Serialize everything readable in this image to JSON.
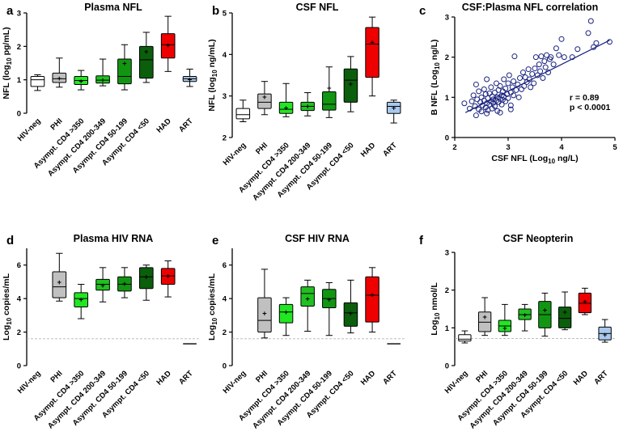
{
  "figure": {
    "panel_labels": [
      "a",
      "b",
      "c",
      "d",
      "e",
      "f"
    ]
  },
  "chart_data": [
    {
      "id": "a",
      "type": "box",
      "title": "Plasma NFL",
      "ylabel_parts": [
        "NFL (log",
        "10",
        " pg/mL)"
      ],
      "ylim": [
        0,
        3
      ],
      "yticks": [
        0,
        1,
        2,
        3
      ],
      "categories": [
        "HIV-neg",
        "PHI",
        "Asympt. CD4 >350",
        "Asympt. CD4 200-349",
        "Asympt. CD4 50-199",
        "Asympt. CD4 <50",
        "HAD",
        "ART"
      ],
      "colors": [
        "#ffffff",
        "#c0c0c0",
        "#22e622",
        "#20c020",
        "#129612",
        "#0b5e0b",
        "#ee0000",
        "#a8c8ee"
      ],
      "boxes": [
        {
          "min": 0.68,
          "q1": 0.8,
          "median": 1.0,
          "q3": 1.1,
          "max": 1.15,
          "mean": null
        },
        {
          "min": 0.78,
          "q1": 0.92,
          "median": 1.03,
          "q3": 1.2,
          "max": 1.65,
          "mean": 1.05
        },
        {
          "min": 0.7,
          "q1": 0.86,
          "median": 0.98,
          "q3": 1.1,
          "max": 1.28,
          "mean": 0.97
        },
        {
          "min": 0.82,
          "q1": 0.9,
          "median": 0.99,
          "q3": 1.12,
          "max": 1.62,
          "mean": 1.0
        },
        {
          "min": 0.7,
          "q1": 0.88,
          "median": 1.1,
          "q3": 1.62,
          "max": 2.05,
          "mean": 1.5
        },
        {
          "min": 0.92,
          "q1": 1.05,
          "median": 1.6,
          "q3": 2.0,
          "max": 2.42,
          "mean": 1.85
        },
        {
          "min": 1.25,
          "q1": 1.65,
          "median": 2.05,
          "q3": 2.38,
          "max": 2.9,
          "mean": 2.05
        },
        {
          "min": 0.8,
          "q1": 0.95,
          "median": 1.03,
          "q3": 1.1,
          "max": 1.32,
          "mean": 1.02
        }
      ]
    },
    {
      "id": "b",
      "type": "box",
      "title": "CSF NFL",
      "ylabel_parts": [
        "NFL (log",
        "10",
        " ng/mL)"
      ],
      "ylim": [
        2,
        5
      ],
      "yticks": [
        2,
        3,
        4,
        5
      ],
      "categories": [
        "HIV-neg",
        "PHI",
        "Asympt. CD4 >350",
        "Asympt. CD4 200-349",
        "Asympt. CD4 50-199",
        "Asympt. CD4 <50",
        "HAD",
        "ART"
      ],
      "colors": [
        "#ffffff",
        "#c0c0c0",
        "#22e622",
        "#20c020",
        "#129612",
        "#0b5e0b",
        "#ee0000",
        "#a8c8ee"
      ],
      "boxes": [
        {
          "min": 2.38,
          "q1": 2.45,
          "median": 2.55,
          "q3": 2.7,
          "max": 2.9,
          "mean": null
        },
        {
          "min": 2.55,
          "q1": 2.7,
          "median": 2.85,
          "q3": 3.05,
          "max": 3.35,
          "mean": 2.98
        },
        {
          "min": 2.5,
          "q1": 2.58,
          "median": 2.68,
          "q3": 2.85,
          "max": 3.3,
          "mean": 2.72
        },
        {
          "min": 2.52,
          "q1": 2.65,
          "median": 2.75,
          "q3": 2.85,
          "max": 3.08,
          "mean": 2.76
        },
        {
          "min": 2.48,
          "q1": 2.66,
          "median": 2.8,
          "q3": 3.1,
          "max": 3.7,
          "mean": 3.2
        },
        {
          "min": 2.62,
          "q1": 2.85,
          "median": 3.38,
          "q3": 3.65,
          "max": 3.95,
          "mean": 3.3
        },
        {
          "min": 3.0,
          "q1": 3.45,
          "median": 4.25,
          "q3": 4.65,
          "max": 4.9,
          "mean": 4.3
        },
        {
          "min": 2.35,
          "q1": 2.58,
          "median": 2.75,
          "q3": 2.85,
          "max": 2.9,
          "mean": 2.72
        }
      ]
    },
    {
      "id": "c",
      "type": "scatter",
      "title": "CSF:Plasma NFL correlation",
      "xlabel_parts": [
        "CSF NFL (Log",
        "10",
        " ng/L)"
      ],
      "ylabel_parts": [
        "B NFL (Log",
        "10",
        " ng/L)"
      ],
      "xlim": [
        2,
        5
      ],
      "ylim": [
        0,
        3
      ],
      "xticks": [
        2,
        3,
        4,
        5
      ],
      "yticks": [
        0,
        1,
        2,
        3
      ],
      "r_text": "r = 0.89",
      "p_text": "p < 0.0001",
      "fit": {
        "x0": 2.2,
        "y0": 0.62,
        "x1": 4.9,
        "y1": 2.42
      },
      "points": [
        [
          2.18,
          0.85
        ],
        [
          2.28,
          0.72
        ],
        [
          2.32,
          0.9
        ],
        [
          2.35,
          1.05
        ],
        [
          2.38,
          0.78
        ],
        [
          2.4,
          1.32
        ],
        [
          2.42,
          0.95
        ],
        [
          2.45,
          0.7
        ],
        [
          2.45,
          1.15
        ],
        [
          2.48,
          0.88
        ],
        [
          2.5,
          1.0
        ],
        [
          2.5,
          0.65
        ],
        [
          2.52,
          0.8
        ],
        [
          2.55,
          1.2
        ],
        [
          2.55,
          0.92
        ],
        [
          2.58,
          0.75
        ],
        [
          2.58,
          1.08
        ],
        [
          2.6,
          0.85
        ],
        [
          2.6,
          1.45
        ],
        [
          2.62,
          0.98
        ],
        [
          2.62,
          0.68
        ],
        [
          2.65,
          1.1
        ],
        [
          2.65,
          0.82
        ],
        [
          2.68,
          0.9
        ],
        [
          2.68,
          1.25
        ],
        [
          2.7,
          0.72
        ],
        [
          2.7,
          1.02
        ],
        [
          2.72,
          0.86
        ],
        [
          2.72,
          0.95
        ],
        [
          2.75,
          1.12
        ],
        [
          2.75,
          0.78
        ],
        [
          2.78,
          0.92
        ],
        [
          2.78,
          1.35
        ],
        [
          2.8,
          1.0
        ],
        [
          2.8,
          0.66
        ],
        [
          2.82,
          1.18
        ],
        [
          2.82,
          0.88
        ],
        [
          2.85,
          0.96
        ],
        [
          2.85,
          1.28
        ],
        [
          2.88,
          1.05
        ],
        [
          2.88,
          0.82
        ],
        [
          2.9,
          1.15
        ],
        [
          2.9,
          0.94
        ],
        [
          2.92,
          1.45
        ],
        [
          2.92,
          1.02
        ],
        [
          2.95,
          0.9
        ],
        [
          2.95,
          1.22
        ],
        [
          2.98,
          1.08
        ],
        [
          3.0,
          1.35
        ],
        [
          3.0,
          0.98
        ],
        [
          3.02,
          1.55
        ],
        [
          3.05,
          1.12
        ],
        [
          3.05,
          0.8
        ],
        [
          3.08,
          1.25
        ],
        [
          3.1,
          1.05
        ],
        [
          3.1,
          1.4
        ],
        [
          3.12,
          2.02
        ],
        [
          3.15,
          1.18
        ],
        [
          3.18,
          1.32
        ],
        [
          3.2,
          1.0
        ],
        [
          3.22,
          1.48
        ],
        [
          3.25,
          1.2
        ],
        [
          3.28,
          1.62
        ],
        [
          3.3,
          1.28
        ],
        [
          3.32,
          1.5
        ],
        [
          3.35,
          1.38
        ],
        [
          3.38,
          1.7
        ],
        [
          3.4,
          1.45
        ],
        [
          3.42,
          1.25
        ],
        [
          3.45,
          1.58
        ],
        [
          3.48,
          1.35
        ],
        [
          3.5,
          1.72
        ],
        [
          3.52,
          2.0
        ],
        [
          3.55,
          1.55
        ],
        [
          3.58,
          1.82
        ],
        [
          3.6,
          1.65
        ],
        [
          3.62,
          2.02
        ],
        [
          3.65,
          1.48
        ],
        [
          3.68,
          1.9
        ],
        [
          3.7,
          1.75
        ],
        [
          3.72,
          2.05
        ],
        [
          3.75,
          1.62
        ],
        [
          3.78,
          1.95
        ],
        [
          3.8,
          2.0
        ],
        [
          3.85,
          1.82
        ],
        [
          3.9,
          2.22
        ],
        [
          3.95,
          2.05
        ],
        [
          4.0,
          2.45
        ],
        [
          4.05,
          2.0
        ],
        [
          4.2,
          2.0
        ],
        [
          4.3,
          2.2
        ],
        [
          4.5,
          2.6
        ],
        [
          4.6,
          2.25
        ],
        [
          4.55,
          2.9
        ],
        [
          4.65,
          2.35
        ],
        [
          4.9,
          2.38
        ],
        [
          2.4,
          0.55
        ],
        [
          2.6,
          0.6
        ],
        [
          2.85,
          0.62
        ],
        [
          3.05,
          0.7
        ]
      ]
    },
    {
      "id": "d",
      "type": "box",
      "title": "Plasma HIV RNA",
      "ylabel_parts": [
        "Log",
        "10",
        " copies/mL"
      ],
      "ylim": [
        0,
        7
      ],
      "yticks": [
        0,
        2,
        4,
        6
      ],
      "hline": 1.6,
      "categories": [
        "HIV-neg",
        "PHI",
        "Asympt. CD4 >350",
        "Asympt. CD4 200-349",
        "Asympt. CD4 50-199",
        "Asympt. CD4 <50",
        "HAD",
        "ART"
      ],
      "colors": [
        "#ffffff",
        "#c0c0c0",
        "#22e622",
        "#20c020",
        "#129612",
        "#0b5e0b",
        "#ee0000",
        "#a8c8ee"
      ],
      "boxes": [
        null,
        {
          "min": 3.85,
          "q1": 4.05,
          "median": 4.7,
          "q3": 5.6,
          "max": 6.7,
          "mean": 5.0
        },
        {
          "min": 2.8,
          "q1": 3.5,
          "median": 4.0,
          "q3": 4.35,
          "max": 4.85,
          "mean": 3.95
        },
        {
          "min": 3.8,
          "q1": 4.5,
          "median": 4.85,
          "q3": 5.15,
          "max": 5.85,
          "mean": 4.8
        },
        {
          "min": 4.05,
          "q1": 4.45,
          "median": 4.85,
          "q3": 5.3,
          "max": 5.85,
          "mean": 4.9
        },
        {
          "min": 3.9,
          "q1": 4.6,
          "median": 5.3,
          "q3": 5.85,
          "max": 6.0,
          "mean": 5.3
        },
        {
          "min": 4.1,
          "q1": 4.85,
          "median": 5.35,
          "q3": 5.8,
          "max": 6.25,
          "mean": 5.35
        },
        {
          "min": 1.3,
          "q1": 1.3,
          "median": 1.3,
          "q3": 1.3,
          "max": 1.3,
          "mean": null
        }
      ]
    },
    {
      "id": "e",
      "type": "box",
      "title": "CSF HIV RNA",
      "ylabel_parts": [
        "Log",
        "10",
        " copies/mL"
      ],
      "ylim": [
        0,
        7
      ],
      "yticks": [
        0,
        2,
        4,
        6
      ],
      "hline": 1.6,
      "categories": [
        "HIV-neg",
        "PHI",
        "Asympt. CD4 >350",
        "Asympt. CD4 200-349",
        "Asympt. CD4 50-199",
        "Asympt. CD4 <50",
        "HAD",
        "ART"
      ],
      "colors": [
        "#ffffff",
        "#c0c0c0",
        "#22e622",
        "#20c020",
        "#129612",
        "#0b5e0b",
        "#ee0000",
        "#a8c8ee"
      ],
      "boxes": [
        null,
        {
          "min": 1.65,
          "q1": 2.0,
          "median": 2.7,
          "q3": 4.05,
          "max": 5.75,
          "mean": 3.15
        },
        {
          "min": 1.8,
          "q1": 2.55,
          "median": 3.2,
          "q3": 3.65,
          "max": 4.05,
          "mean": 3.2
        },
        {
          "min": 2.05,
          "q1": 3.55,
          "median": 4.3,
          "q3": 4.7,
          "max": 5.1,
          "mean": 4.0
        },
        {
          "min": 1.8,
          "q1": 3.45,
          "median": 4.0,
          "q3": 4.55,
          "max": 4.95,
          "mean": 3.95
        },
        {
          "min": 1.95,
          "q1": 2.35,
          "median": 3.15,
          "q3": 3.75,
          "max": 5.1,
          "mean": 3.15
        },
        {
          "min": 2.0,
          "q1": 2.6,
          "median": 4.2,
          "q3": 5.3,
          "max": 5.85,
          "mean": 4.25
        },
        {
          "min": 1.3,
          "q1": 1.3,
          "median": 1.3,
          "q3": 1.3,
          "max": 1.3,
          "mean": null
        }
      ]
    },
    {
      "id": "f",
      "type": "box",
      "title": "CSF Neopterin",
      "ylabel_parts": [
        "Log",
        "10",
        " nmol/L"
      ],
      "ylim": [
        0,
        3
      ],
      "yticks": [
        0,
        1,
        2,
        3
      ],
      "hline": 0.72,
      "categories": [
        "HIV-neg",
        "PHI",
        "Asympt. CD4 >350",
        "Asympt. CD4 200-349",
        "Asympt. CD4 50-199",
        "Asympt. CD4 <50",
        "HAD",
        "ART"
      ],
      "colors": [
        "#ffffff",
        "#c0c0c0",
        "#22e622",
        "#20c020",
        "#129612",
        "#0b5e0b",
        "#ee0000",
        "#a8c8ee"
      ],
      "boxes": [
        {
          "min": 0.6,
          "q1": 0.65,
          "median": 0.7,
          "q3": 0.82,
          "max": 0.92,
          "mean": null
        },
        {
          "min": 0.8,
          "q1": 0.9,
          "median": 1.15,
          "q3": 1.42,
          "max": 1.8,
          "mean": 1.3
        },
        {
          "min": 0.8,
          "q1": 0.9,
          "median": 1.05,
          "q3": 1.2,
          "max": 1.62,
          "mean": 1.0
        },
        {
          "min": 0.92,
          "q1": 1.22,
          "median": 1.35,
          "q3": 1.5,
          "max": 1.62,
          "mean": 1.35
        },
        {
          "min": 0.78,
          "q1": 1.0,
          "median": 1.35,
          "q3": 1.7,
          "max": 1.92,
          "mean": 1.48
        },
        {
          "min": 0.95,
          "q1": 1.0,
          "median": 1.25,
          "q3": 1.55,
          "max": 1.95,
          "mean": 1.42
        },
        {
          "min": 1.35,
          "q1": 1.4,
          "median": 1.65,
          "q3": 1.92,
          "max": 2.05,
          "mean": 1.7
        },
        {
          "min": 0.62,
          "q1": 0.68,
          "median": 0.85,
          "q3": 1.02,
          "max": 1.22,
          "mean": 0.82
        }
      ]
    }
  ]
}
